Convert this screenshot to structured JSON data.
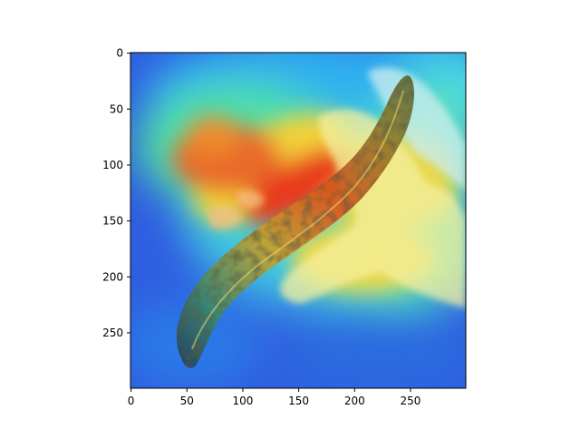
{
  "chart_data": {
    "type": "heatmap",
    "title": "",
    "xlabel": "",
    "ylabel": "",
    "xlim": [
      0,
      299
    ],
    "ylim": [
      299,
      0
    ],
    "x_ticks": [
      0,
      50,
      100,
      150,
      200,
      250
    ],
    "y_ticks": [
      0,
      50,
      100,
      150,
      200,
      250
    ],
    "grid": false,
    "legend": "none",
    "image": {
      "subject": "sea-cucumber",
      "overlay": "jet colormap activation heatmap",
      "colors": {
        "hot": "#e83a1c",
        "warm": "#f2d23a",
        "mid": "#4fe0a6",
        "cool": "#2fb0f0",
        "cold": "#2f5ee0"
      }
    }
  }
}
